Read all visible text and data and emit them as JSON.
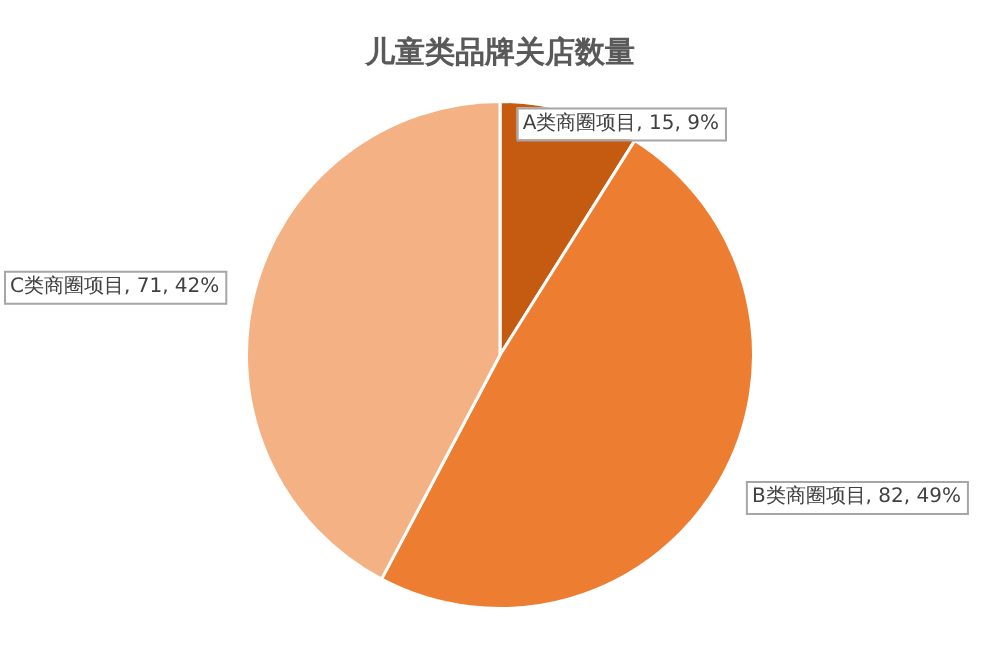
{
  "chart_data": {
    "type": "pie",
    "title": "儿童类品牌关店数量",
    "categories": [
      "A类商圈项目",
      "B类商圈项目",
      "C类商圈项目"
    ],
    "values": [
      15,
      82,
      71
    ],
    "colors": [
      "#c55a11",
      "#ed7d31",
      "#f4b183"
    ],
    "value_labels": [
      ", 15, 9%",
      ", 82, 49%",
      ", 71, 42%"
    ],
    "legend": false
  }
}
